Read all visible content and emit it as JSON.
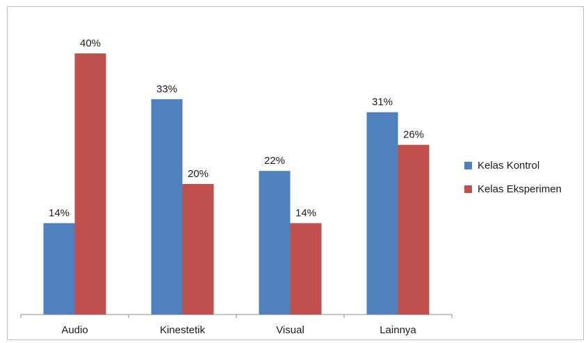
{
  "chart_data": {
    "type": "bar",
    "categories": [
      "Audio",
      "Kinestetik",
      "Visual",
      "Lainnya"
    ],
    "series": [
      {
        "name": "Kelas Kontrol",
        "values": [
          14,
          33,
          22,
          31
        ],
        "labels": [
          "14%",
          "33%",
          "22%",
          "31%"
        ],
        "color": "#4f81bd"
      },
      {
        "name": "Kelas Eksperimen",
        "values": [
          40,
          20,
          14,
          26
        ],
        "labels": [
          "40%",
          "20%",
          "14%",
          "26%"
        ],
        "color": "#c0504d"
      }
    ],
    "ylim": [
      0,
      40
    ],
    "grid": false,
    "legend_position": "right"
  }
}
